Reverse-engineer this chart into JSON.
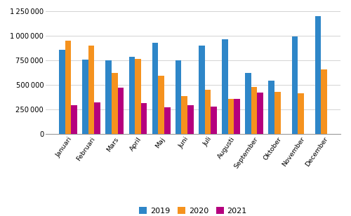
{
  "months": [
    "Januari",
    "Februari",
    "Mars",
    "April",
    "Maj",
    "Juni",
    "Juli",
    "Augusti",
    "September",
    "Oktober",
    "November",
    "December"
  ],
  "values_2019": [
    860000,
    755000,
    750000,
    790000,
    930000,
    750000,
    900000,
    965000,
    625000,
    545000,
    995000,
    1200000
  ],
  "values_2020": [
    950000,
    900000,
    620000,
    765000,
    590000,
    385000,
    450000,
    360000,
    480000,
    430000,
    415000,
    660000
  ],
  "values_2021": [
    290000,
    320000,
    475000,
    315000,
    275000,
    295000,
    280000,
    355000,
    425000,
    null,
    null,
    null
  ],
  "color_2019": "#2E86C8",
  "color_2020": "#F5921E",
  "color_2021": "#B5007E",
  "ylim": [
    0,
    1300000
  ],
  "yticks": [
    0,
    250000,
    500000,
    750000,
    1000000,
    1250000
  ],
  "legend_labels": [
    "2019",
    "2020",
    "2021"
  ],
  "bar_width": 0.26
}
